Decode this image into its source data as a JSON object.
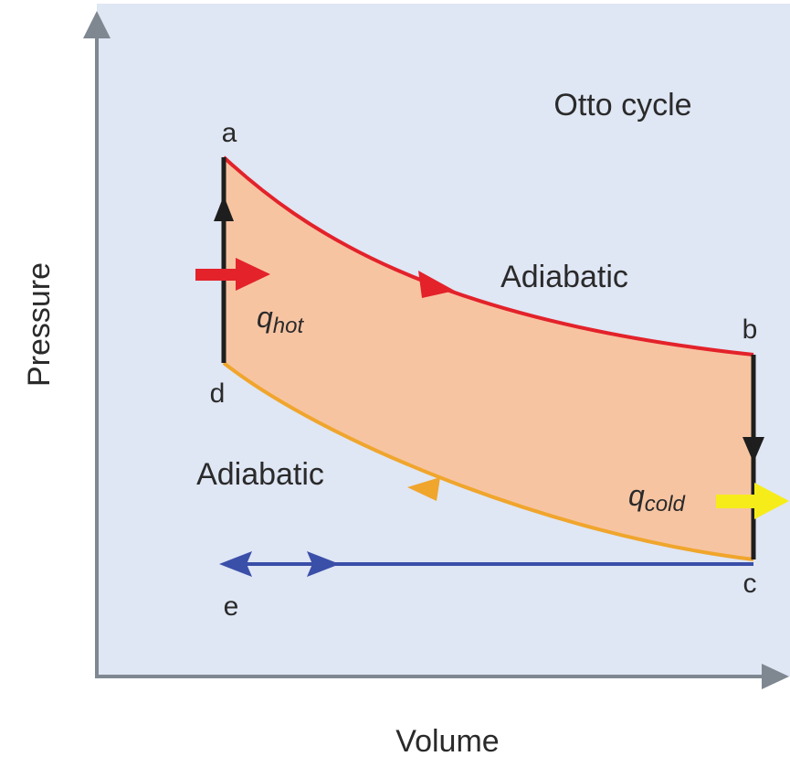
{
  "title": "Otto cycle",
  "axes": {
    "x_label": "Volume",
    "y_label": "Pressure"
  },
  "points": {
    "a": "a",
    "b": "b",
    "c": "c",
    "d": "d",
    "e": "e"
  },
  "processes": {
    "top": "Adiabatic",
    "bottom": "Adiabatic"
  },
  "heat": {
    "hot": {
      "symbol": "q",
      "subscript": "hot"
    },
    "cold": {
      "symbol": "q",
      "subscript": "cold"
    }
  },
  "colors": {
    "background": "#dfe6f4",
    "cycle_fill": "#f7c4a2",
    "top_curve": "#e3222a",
    "bottom_curve": "#f0a52c",
    "vertical_lines": "#1e1e1e",
    "intake_line": "#3a4fa8",
    "hot_arrow": "#e3222a",
    "cold_arrow": "#f6ec1a",
    "axis": "#7f8791"
  }
}
